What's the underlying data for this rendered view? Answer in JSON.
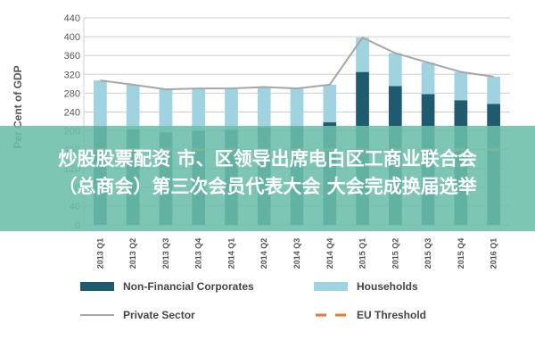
{
  "chart_data": {
    "type": "bar",
    "stacked": true,
    "ylabel": "Per Cent of GDP",
    "ylim": [
      0,
      440
    ],
    "yticks": [
      0,
      40,
      80,
      120,
      160,
      200,
      240,
      280,
      320,
      360,
      400,
      440
    ],
    "grid": true,
    "categories": [
      "2013 Q1",
      "2013 Q2",
      "2013 Q3",
      "2013 Q4",
      "2014 Q1",
      "2014 Q2",
      "2014 Q3",
      "2014 Q4",
      "2015 Q1",
      "2015 Q2",
      "2015 Q3",
      "2015 Q4",
      "2016 Q1"
    ],
    "series": [
      {
        "name": "Non-Financial Corporates",
        "kind": "bar",
        "color": "#1e5b6e",
        "values": [
          210,
          203,
          197,
          200,
          202,
          208,
          210,
          218,
          325,
          295,
          278,
          265,
          257
        ]
      },
      {
        "name": "Households",
        "kind": "bar",
        "color": "#9fd3e0",
        "values": [
          97,
          95,
          91,
          90,
          88,
          85,
          80,
          80,
          73,
          70,
          67,
          60,
          58
        ]
      },
      {
        "name": "Private Sector",
        "kind": "line",
        "color": "#a6a6a6",
        "values": [
          307,
          298,
          288,
          290,
          290,
          293,
          290,
          298,
          398,
          365,
          345,
          325,
          315
        ]
      },
      {
        "name": "EU Threshold",
        "kind": "dash",
        "color": "#e07b39",
        "values": [
          160,
          160,
          160,
          160,
          160,
          160,
          160,
          160,
          160,
          160,
          160,
          160,
          160
        ]
      }
    ],
    "legend_position": "bottom"
  },
  "overlay": {
    "line1": "炒股股票配资 市、区领导出席电白区工商业联合会",
    "line2": "（总商会）第三次会员代表大会  大会完成换届选举"
  }
}
